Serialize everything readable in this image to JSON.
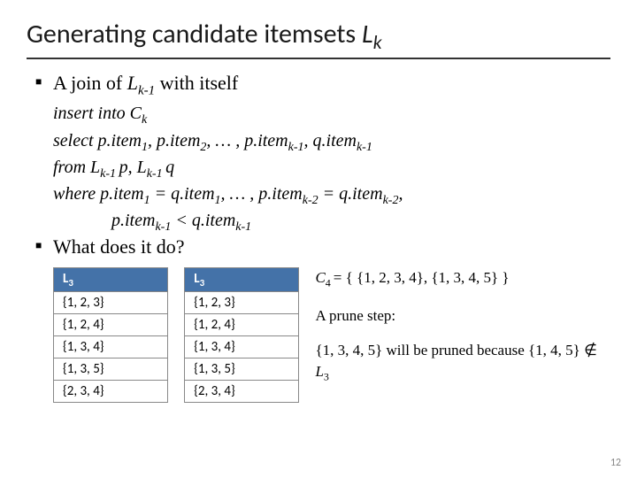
{
  "title": {
    "main": "Generating candidate itemsets ",
    "italic": "L",
    "sub": "k"
  },
  "bullets": {
    "b1_pre": "A join of ",
    "b1_L": "L",
    "b1_sub": "k-1",
    "b1_post": " with itself",
    "b2": "What does it do?"
  },
  "sql": {
    "line1_a": "insert into C",
    "line1_sub": "k",
    "line2_a": "select p.item",
    "line2_s1": "1",
    "line2_b": ", p.item",
    "line2_s2": "2",
    "line2_c": ", … , p.item",
    "line2_s3": "k-1",
    "line2_d": ", q.item",
    "line2_s4": "k-1",
    "line3_a": "from L",
    "line3_s1": "k-1 ",
    "line3_b": "p, L",
    "line3_s2": "k-1 ",
    "line3_c": "q",
    "line4_a": "where p.item",
    "line4_s1": "1",
    "line4_b": " = q.item",
    "line4_s2": "1",
    "line4_c": ", … , p.item",
    "line4_s3": "k-2",
    "line4_d": " = q.item",
    "line4_s4": "k-2",
    "line4_e": ",",
    "line5_a": "p.item",
    "line5_s1": "k-1",
    "line5_b": " < q.item",
    "line5_s2": "k-1"
  },
  "tables": {
    "header": "L",
    "header_sub": "3",
    "rows": [
      "{1, 2, 3}",
      "{1, 2, 4}",
      "{1, 3, 4}",
      "{1, 3, 5}",
      "{2, 3, 4}"
    ]
  },
  "right": {
    "c4_pre": "C",
    "c4_sub": "4 ",
    "c4_post": "= { {1, 2, 3, 4}, {1, 3, 4, 5} }",
    "prune": "A prune step:",
    "expl_a": "{1, 3, 4, 5} will be pruned because {1, 4, 5} ",
    "notin": "∉",
    "expl_b": " L",
    "expl_sub": "3"
  },
  "pagenum": "12",
  "colors": {
    "table_header_bg": "#4472a8",
    "table_header_fg": "#ffffff",
    "border": "#888888"
  }
}
